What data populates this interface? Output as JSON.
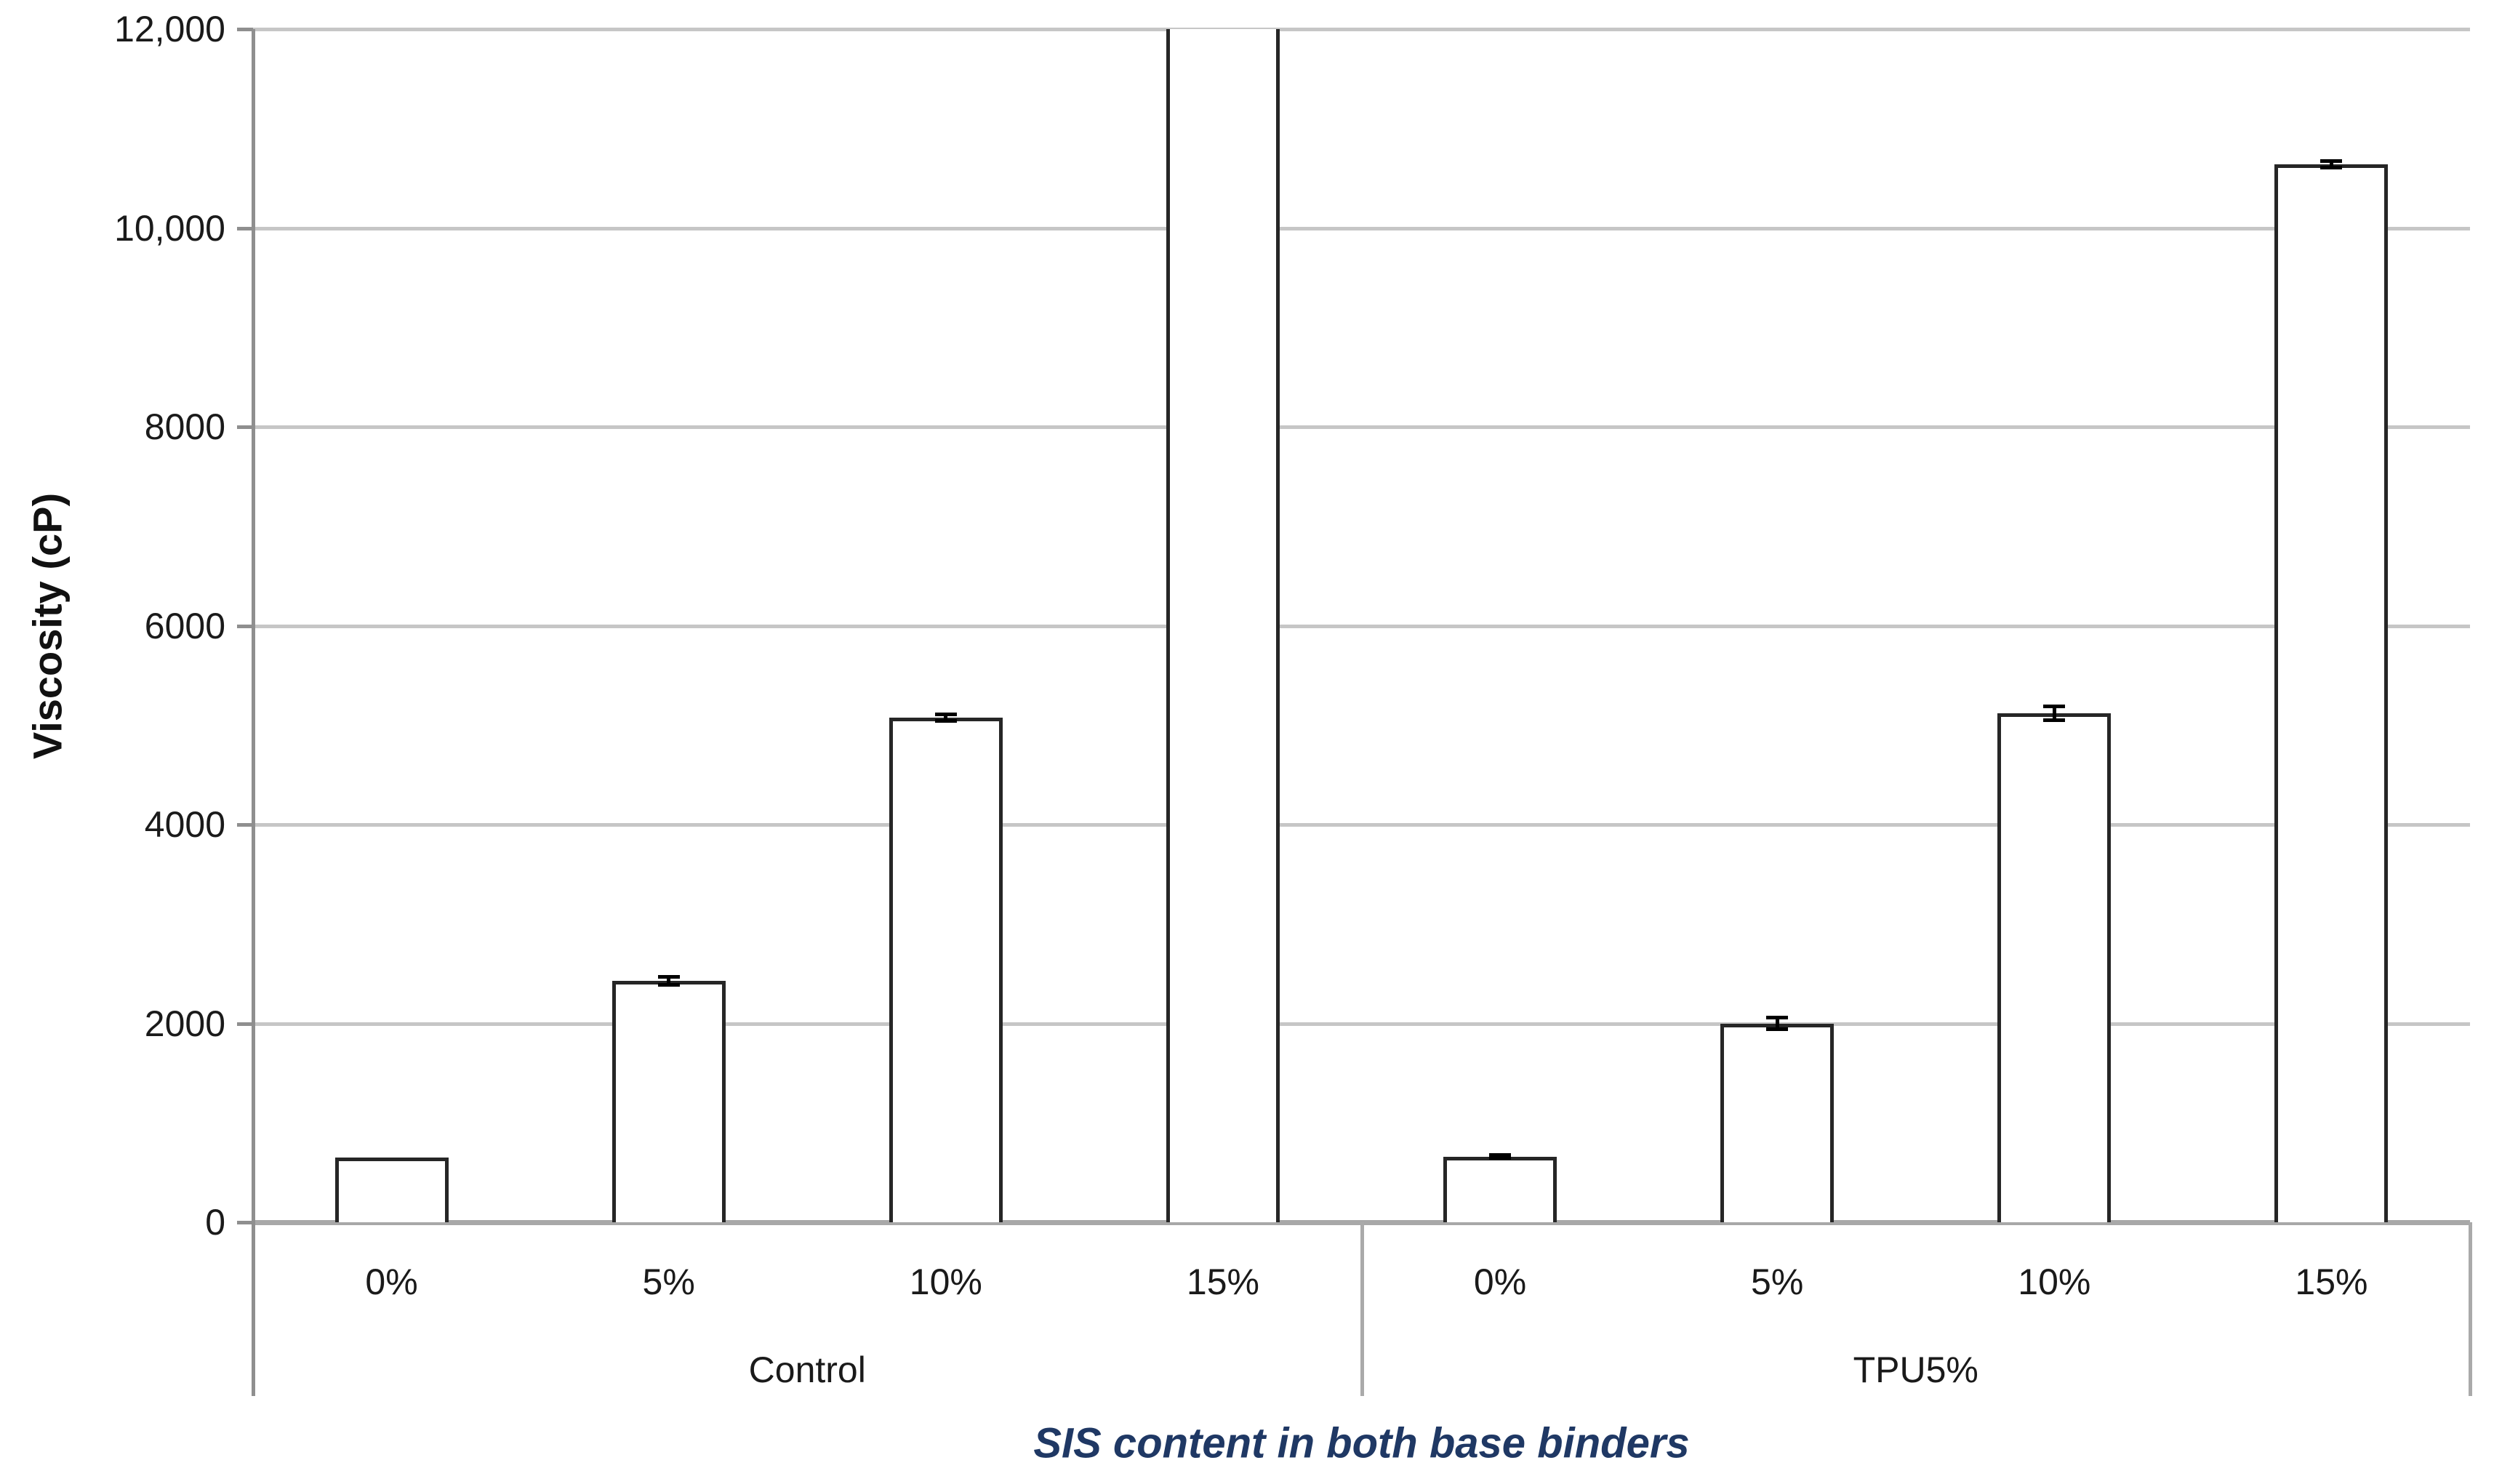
{
  "figure": {
    "background": "#ffffff"
  },
  "chart_data": {
    "type": "bar",
    "title": "",
    "xlabel": "SIS content in both base binders",
    "ylabel": "Viscosity (cP)",
    "ylim": [
      0,
      12000
    ],
    "grid": "horizontal gridlines every 2000, light gray",
    "legend": "none",
    "y_ticks": [
      {
        "value": 0,
        "label": "0"
      },
      {
        "value": 2000,
        "label": "2000"
      },
      {
        "value": 4000,
        "label": "4000"
      },
      {
        "value": 6000,
        "label": "6000"
      },
      {
        "value": 8000,
        "label": "8000"
      },
      {
        "value": 10000,
        "label": "10,000"
      },
      {
        "value": 12000,
        "label": "12,000"
      }
    ],
    "categories": [
      "0%",
      "5%",
      "10%",
      "15%"
    ],
    "series": [
      {
        "name": "Control",
        "values": [
          650,
          2430,
          5075,
          null
        ],
        "errors": [
          null,
          45,
          40,
          null
        ],
        "clipped": [
          false,
          false,
          false,
          true
        ]
      },
      {
        "name": "TPU5%",
        "values": [
          660,
          2000,
          5120,
          10640
        ],
        "errors": [
          20,
          60,
          75,
          40
        ],
        "clipped": [
          false,
          false,
          false,
          false
        ]
      }
    ],
    "annotations": "Control 15% bar exceeds the 12,000 cP axis maximum and is clipped at the top of the plot (no top edge drawn)",
    "colors": {
      "bar_fill": "#ffffff",
      "bar_border": "#262626",
      "error_bar": "#000000",
      "gridline": "#c6c6c6",
      "zero_line": "#a8a8a8",
      "axis_line": "#8f8f8f",
      "separator": "#aaaaaa",
      "tick_text": "#1a1a1a",
      "xlabel_text": "#1f3864"
    }
  }
}
